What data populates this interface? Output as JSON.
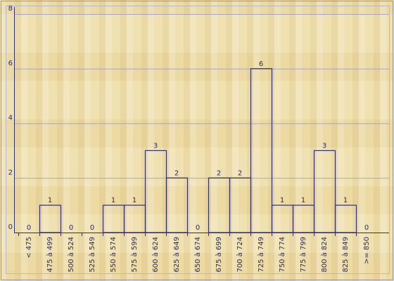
{
  "chart_data": {
    "type": "bar",
    "categories": [
      "< 475",
      "475 à 499",
      "500 à 524",
      "525 à 549",
      "550 à 574",
      "575 à 599",
      "600 à 624",
      "625 à 649",
      "650 à 674",
      "675 à 699",
      "700 à 724",
      "725 à 749",
      "750 à 774",
      "775 à 799",
      "800 à 824",
      "825 à 849",
      ">= 850"
    ],
    "values": [
      0,
      1,
      0,
      0,
      1,
      1,
      3,
      2,
      0,
      2,
      2,
      6,
      1,
      1,
      3,
      1,
      0
    ],
    "color": "#30307a",
    "ylim": [
      0,
      8
    ],
    "yticks": [
      0,
      2,
      4,
      6,
      8
    ],
    "grid": true
  }
}
